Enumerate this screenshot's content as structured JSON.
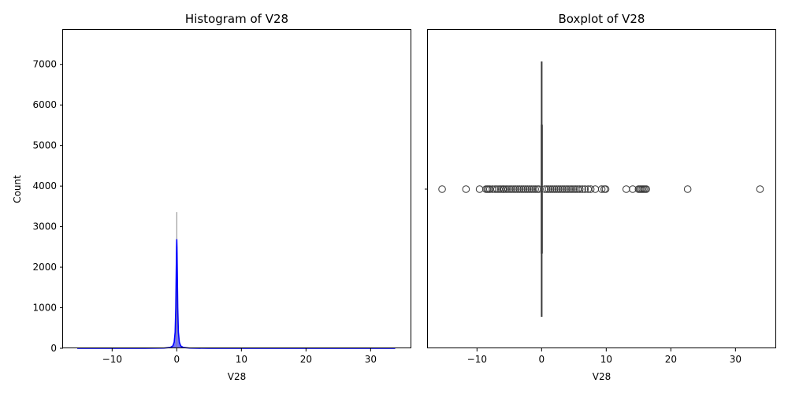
{
  "chart_data": [
    {
      "type": "histogram",
      "title": "Histogram of V28",
      "xlabel": "V28",
      "ylabel": "Count",
      "xlim": [
        -17.6,
        36.3
      ],
      "ylim": [
        0,
        7850
      ],
      "xticks": [
        -10,
        0,
        10,
        20,
        30
      ],
      "xtick_labels": [
        "−10",
        "0",
        "10",
        "20",
        "30"
      ],
      "yticks": [
        0,
        1000,
        2000,
        3000,
        4000,
        5000,
        6000,
        7000
      ],
      "ytick_labels": [
        "0",
        "1000",
        "2000",
        "3000",
        "4000",
        "5000",
        "6000",
        "7000"
      ],
      "colors": {
        "fill": "#0000ff",
        "kde": "#0000ff",
        "peak": "#888888"
      },
      "histogram_peak": {
        "x": 0.0,
        "count": 3360
      },
      "kde": {
        "x": [
          -15.4,
          -5.0,
          -2.0,
          -1.0,
          -0.6,
          -0.4,
          -0.25,
          -0.15,
          -0.08,
          -0.03,
          0.0,
          0.03,
          0.08,
          0.15,
          0.25,
          0.4,
          0.6,
          1.0,
          2.0,
          5.0,
          33.8
        ],
        "y": [
          0,
          0,
          5,
          20,
          60,
          150,
          400,
          1000,
          1900,
          2500,
          2690,
          2500,
          1900,
          1000,
          400,
          150,
          60,
          20,
          5,
          0,
          0
        ]
      }
    },
    {
      "type": "boxplot",
      "title": "Boxplot of V28",
      "xlabel": "V28",
      "xlim": [
        -17.6,
        36.3
      ],
      "xticks": [
        -10,
        0,
        10,
        20,
        30
      ],
      "xtick_labels": [
        "−10",
        "0",
        "10",
        "20",
        "30"
      ],
      "colors": {
        "box": "#3a3a3a",
        "flier": "#3a3a3a"
      },
      "box": {
        "q1": -0.05,
        "median": 0.01,
        "q3": 0.08,
        "whisker_low": -0.25,
        "whisker_high": 0.28
      },
      "fliers": [
        -15.4,
        -11.7,
        -9.6,
        -8.6,
        -8.4,
        -8.2,
        -8.0,
        -7.6,
        -7.2,
        -6.9,
        -6.6,
        -6.3,
        -6.0,
        -5.8,
        -5.5,
        -5.2,
        -4.9,
        -4.6,
        -4.3,
        -4.0,
        -3.7,
        -3.4,
        -3.1,
        -2.8,
        -2.5,
        -2.2,
        -1.9,
        -1.6,
        -1.3,
        -1.0,
        -0.7,
        -0.45,
        0.5,
        0.8,
        1.1,
        1.4,
        1.7,
        2.0,
        2.3,
        2.6,
        2.9,
        3.2,
        3.5,
        3.8,
        4.1,
        4.4,
        4.7,
        5.0,
        5.3,
        5.6,
        5.9,
        6.3,
        6.7,
        7.2,
        7.6,
        8.3,
        9.3,
        9.7,
        9.9,
        13.1,
        14.1,
        15.0,
        15.2,
        15.4,
        15.6,
        15.8,
        16.0,
        16.2,
        22.6,
        33.8
      ]
    }
  ]
}
